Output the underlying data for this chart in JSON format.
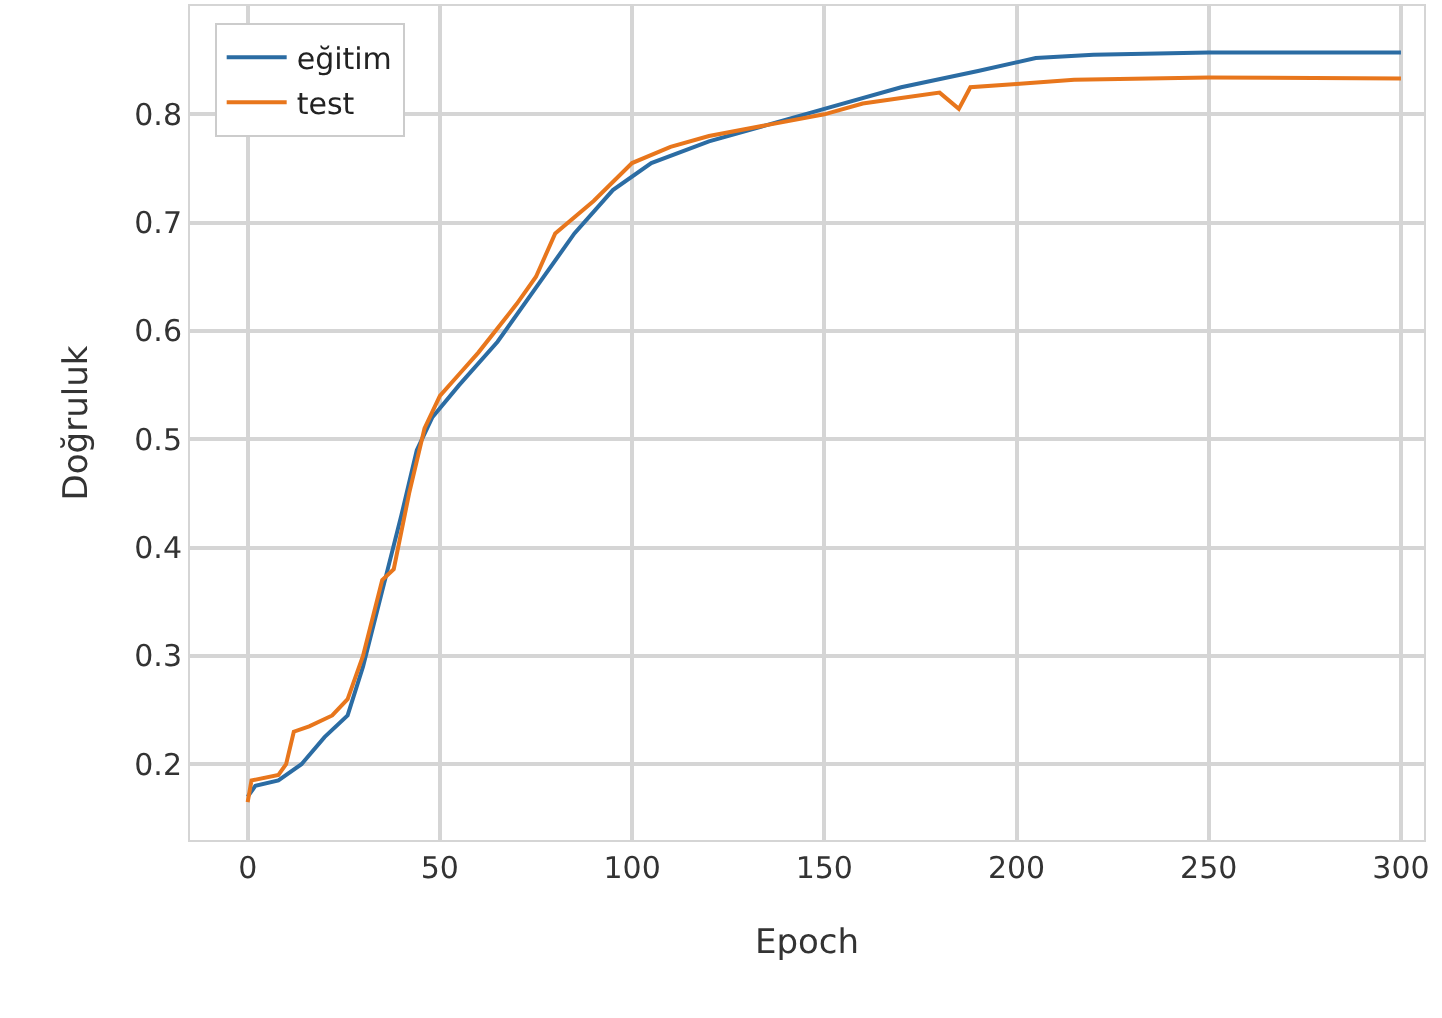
{
  "chart_data": {
    "type": "line",
    "xlabel": "Epoch",
    "ylabel": "Doğruluk",
    "xlim": [
      -15,
      306
    ],
    "ylim": [
      0.13,
      0.9
    ],
    "xticks": [
      0,
      50,
      100,
      150,
      200,
      250,
      300
    ],
    "yticks": [
      0.2,
      0.3,
      0.4,
      0.5,
      0.6,
      0.7,
      0.8
    ],
    "grid": true,
    "legend": "top left",
    "marker": "none",
    "line_style": "solid",
    "series": [
      {
        "name": "eğitim",
        "color": "#2b6ca3",
        "x": [
          0,
          2,
          8,
          14,
          20,
          26,
          30,
          35,
          40,
          44,
          48,
          55,
          65,
          75,
          85,
          95,
          105,
          120,
          135,
          150,
          170,
          190,
          205,
          220,
          250,
          300
        ],
        "values": [
          0.17,
          0.18,
          0.185,
          0.2,
          0.225,
          0.245,
          0.29,
          0.36,
          0.43,
          0.49,
          0.52,
          0.55,
          0.59,
          0.64,
          0.69,
          0.73,
          0.755,
          0.775,
          0.79,
          0.805,
          0.825,
          0.84,
          0.852,
          0.855,
          0.857,
          0.857
        ]
      },
      {
        "name": "test",
        "color": "#e8761c",
        "x": [
          0,
          1,
          8,
          10,
          12,
          16,
          22,
          26,
          30,
          35,
          38,
          42,
          46,
          50,
          55,
          60,
          70,
          75,
          80,
          90,
          100,
          110,
          120,
          135,
          150,
          160,
          170,
          180,
          185,
          188,
          200,
          215,
          250,
          300
        ],
        "values": [
          0.165,
          0.185,
          0.19,
          0.2,
          0.23,
          0.235,
          0.245,
          0.26,
          0.3,
          0.37,
          0.38,
          0.45,
          0.51,
          0.54,
          0.56,
          0.58,
          0.625,
          0.65,
          0.69,
          0.72,
          0.755,
          0.77,
          0.78,
          0.79,
          0.8,
          0.81,
          0.815,
          0.82,
          0.805,
          0.825,
          0.828,
          0.832,
          0.834,
          0.833
        ]
      }
    ]
  }
}
